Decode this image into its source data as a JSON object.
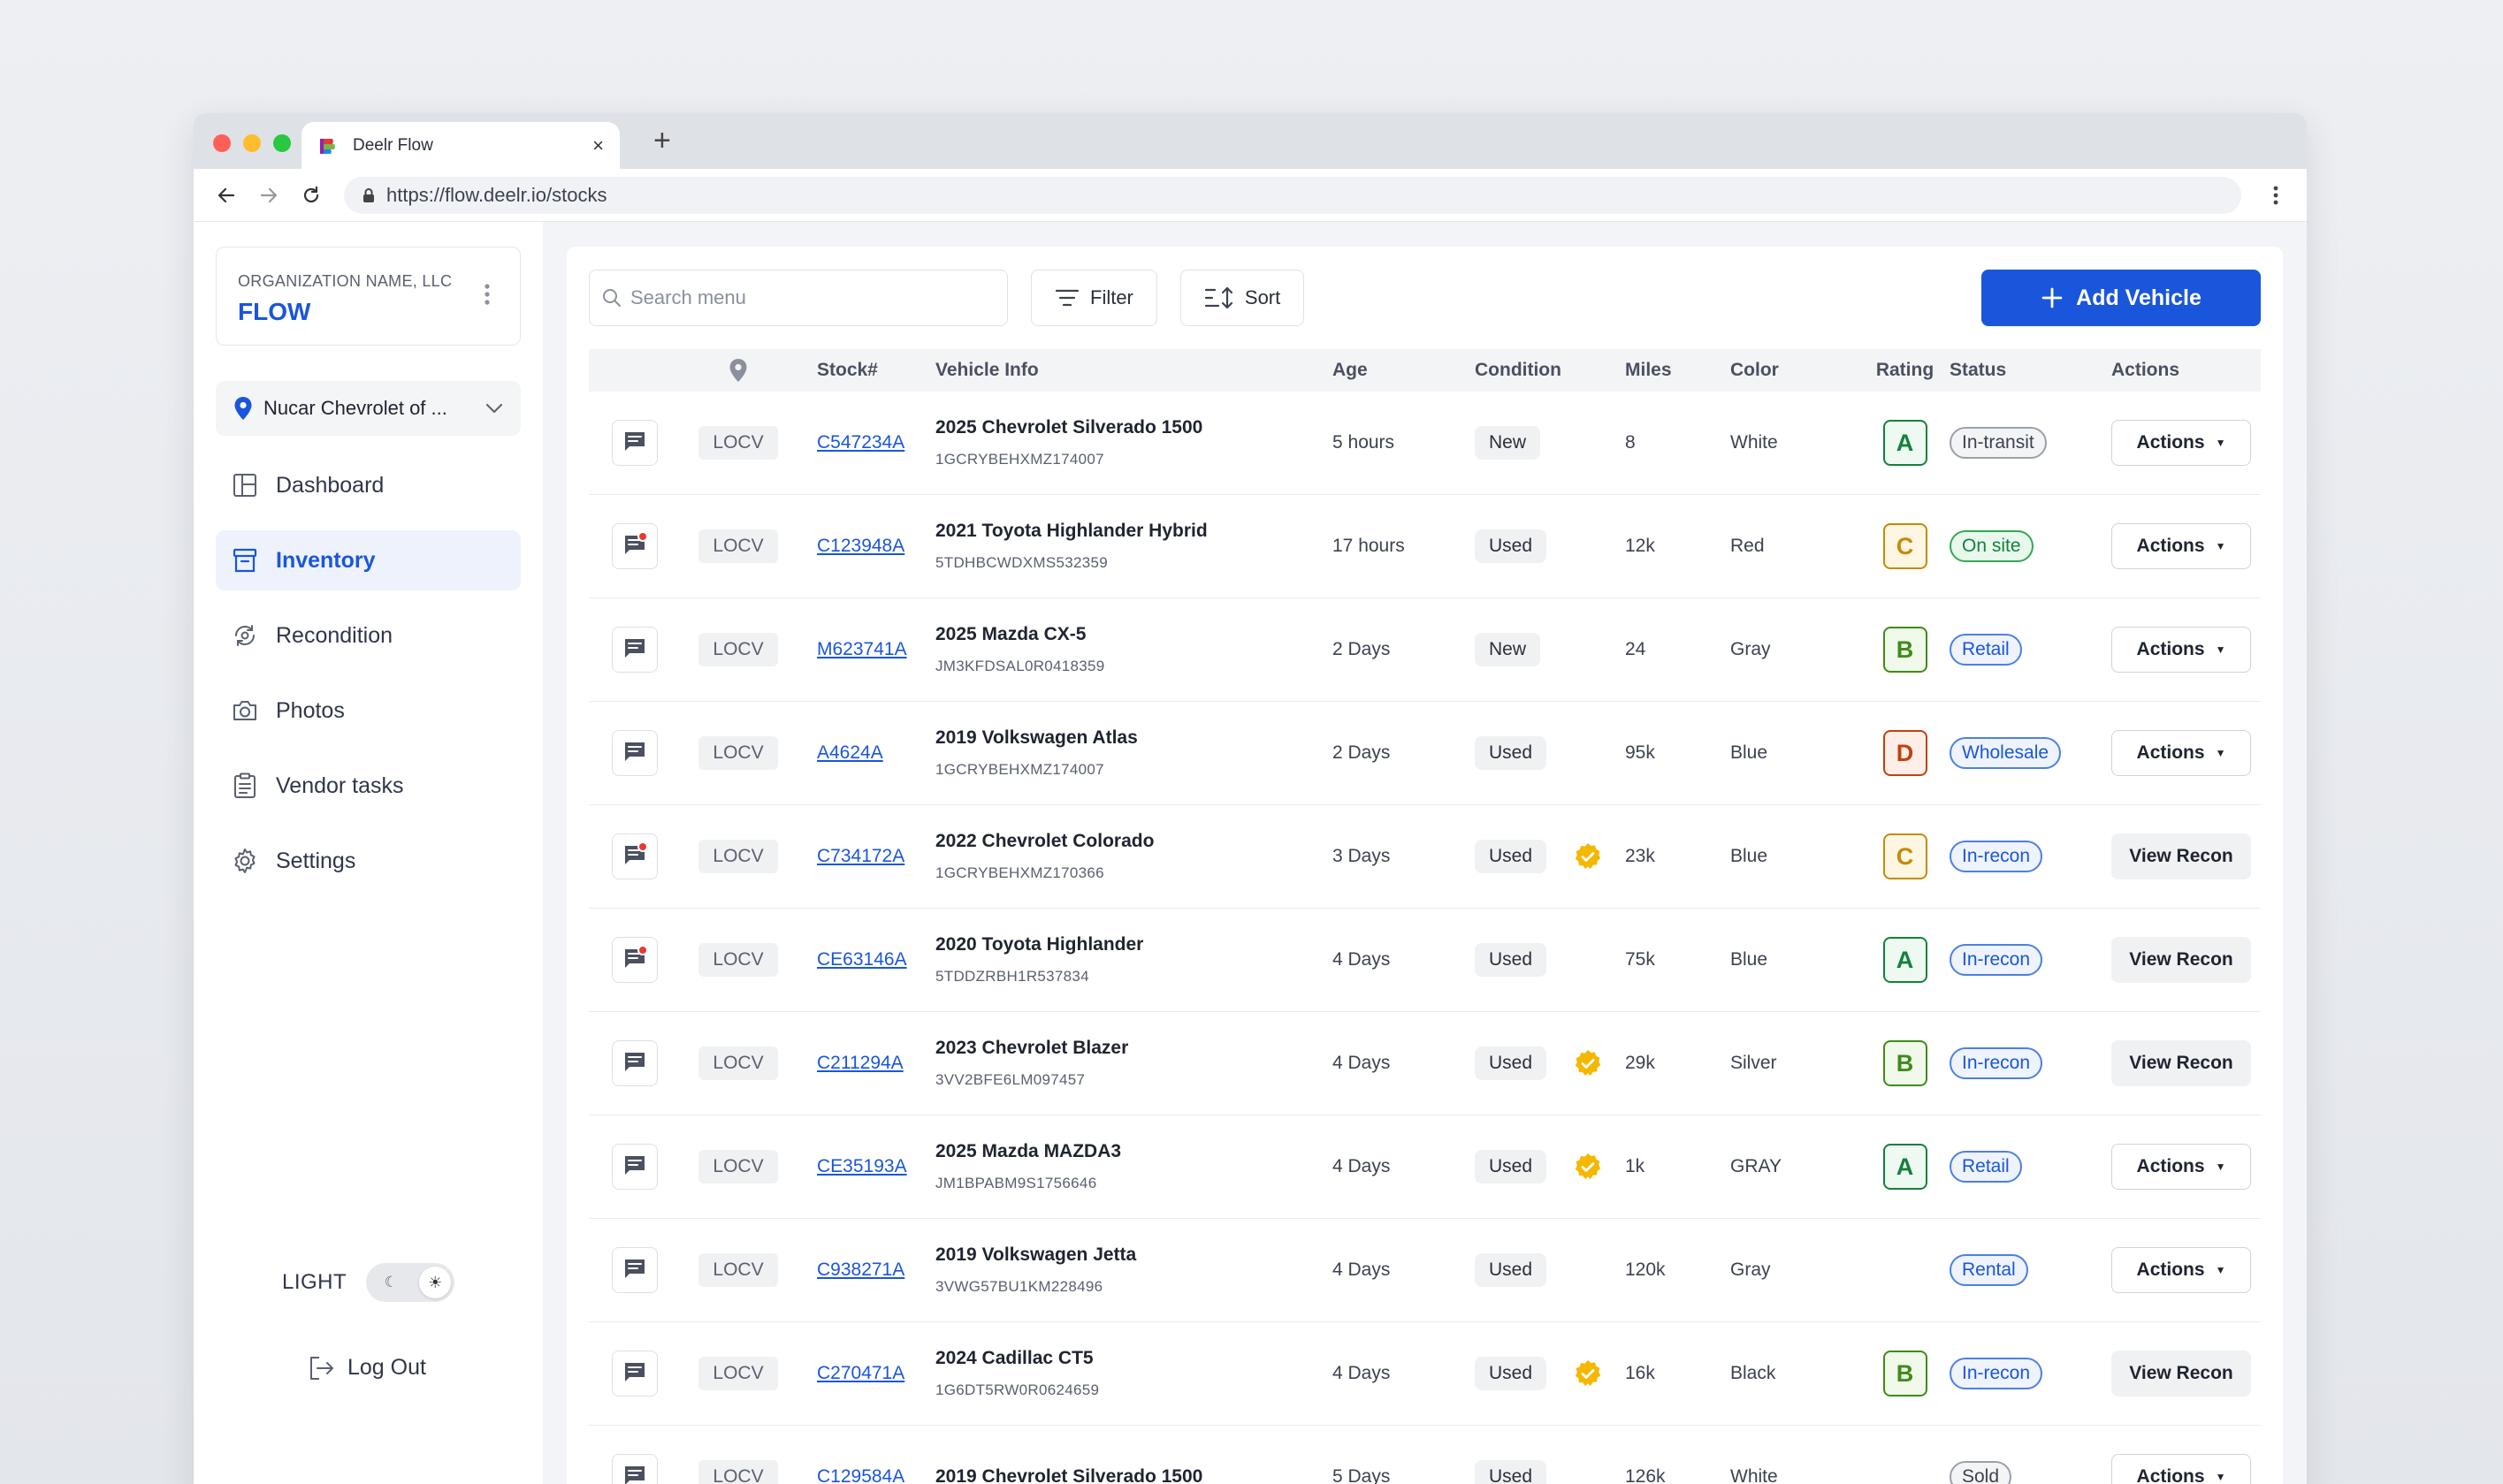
{
  "browser": {
    "tab_title": "Deelr Flow",
    "url": "https://flow.deelr.io/stocks"
  },
  "sidebar": {
    "org_name": "ORGANIZATION NAME, LLC",
    "app_name": "FLOW",
    "location": "Nucar Chevrolet of ...",
    "nav": [
      {
        "label": "Dashboard",
        "icon": "dashboard-icon"
      },
      {
        "label": "Inventory",
        "icon": "inventory-icon",
        "active": true
      },
      {
        "label": "Recondition",
        "icon": "recondition-icon"
      },
      {
        "label": "Photos",
        "icon": "camera-icon"
      },
      {
        "label": "Vendor tasks",
        "icon": "clipboard-icon"
      },
      {
        "label": "Settings",
        "icon": "gear-icon"
      }
    ],
    "theme_label": "LIGHT",
    "logout_label": "Log Out"
  },
  "toolbar": {
    "search_placeholder": "Search menu",
    "filter_label": "Filter",
    "sort_label": "Sort",
    "add_label": "Add Vehicle"
  },
  "table": {
    "headers": {
      "stock": "Stock#",
      "vehicle": "Vehicle Info",
      "age": "Age",
      "condition": "Condition",
      "miles": "Miles",
      "color": "Color",
      "rating": "Rating",
      "status": "Status",
      "actions": "Actions"
    },
    "rows": [
      {
        "loc": "LOCV",
        "stock": "C547234A",
        "name": "2025 Chevrolet Silverado 1500",
        "vin": "1GCRYBEHXMZ174007",
        "age": "5 hours",
        "condition": "New",
        "certified": false,
        "miles": "8",
        "color": "White",
        "rating": "A",
        "status": "In-transit",
        "status_style": "gray",
        "action": "Actions",
        "action_type": "menu",
        "unread": false
      },
      {
        "loc": "LOCV",
        "stock": "C123948A",
        "name": "2021 Toyota Highlander Hybrid",
        "vin": "5TDHBCWDXMS532359",
        "age": "17 hours",
        "condition": "Used",
        "certified": false,
        "miles": "12k",
        "color": "Red",
        "rating": "C",
        "status": "On site",
        "status_style": "green",
        "action": "Actions",
        "action_type": "menu",
        "unread": true
      },
      {
        "loc": "LOCV",
        "stock": "M623741A",
        "name": "2025 Mazda CX-5",
        "vin": "JM3KFDSAL0R0418359",
        "age": "2 Days",
        "condition": "New",
        "certified": false,
        "miles": "24",
        "color": "Gray",
        "rating": "B",
        "status": "Retail",
        "status_style": "blue",
        "action": "Actions",
        "action_type": "menu",
        "unread": false
      },
      {
        "loc": "LOCV",
        "stock": "A4624A",
        "name": "2019 Volkswagen Atlas",
        "vin": "1GCRYBEHXMZ174007",
        "age": "2 Days",
        "condition": "Used",
        "certified": false,
        "miles": "95k",
        "color": "Blue",
        "rating": "D",
        "status": "Wholesale",
        "status_style": "blue",
        "action": "Actions",
        "action_type": "menu",
        "unread": false
      },
      {
        "loc": "LOCV",
        "stock": "C734172A",
        "name": "2022 Chevrolet Colorado",
        "vin": "1GCRYBEHXMZ170366",
        "age": "3 Days",
        "condition": "Used",
        "certified": true,
        "miles": "23k",
        "color": "Blue",
        "rating": "C",
        "status": "In-recon",
        "status_style": "blue",
        "action": "View Recon",
        "action_type": "recon",
        "unread": true
      },
      {
        "loc": "LOCV",
        "stock": "CE63146A",
        "name": "2020 Toyota Highlander",
        "vin": "5TDDZRBH1R537834",
        "age": "4 Days",
        "condition": "Used",
        "certified": false,
        "miles": "75k",
        "color": "Blue",
        "rating": "A",
        "status": "In-recon",
        "status_style": "blue",
        "action": "View Recon",
        "action_type": "recon",
        "unread": true
      },
      {
        "loc": "LOCV",
        "stock": "C211294A",
        "name": "2023 Chevrolet Blazer",
        "vin": "3VV2BFE6LM097457",
        "age": "4 Days",
        "condition": "Used",
        "certified": true,
        "miles": "29k",
        "color": "Silver",
        "rating": "B",
        "status": "In-recon",
        "status_style": "blue",
        "action": "View Recon",
        "action_type": "recon",
        "unread": false
      },
      {
        "loc": "LOCV",
        "stock": "CE35193A",
        "name": "2025 Mazda MAZDA3",
        "vin": "JM1BPABM9S1756646",
        "age": "4 Days",
        "condition": "Used",
        "certified": true,
        "miles": "1k",
        "color": "GRAY",
        "rating": "A",
        "status": "Retail",
        "status_style": "blue",
        "action": "Actions",
        "action_type": "menu",
        "unread": false
      },
      {
        "loc": "LOCV",
        "stock": "C938271A",
        "name": "2019 Volkswagen Jetta",
        "vin": "3VWG57BU1KM228496",
        "age": "4 Days",
        "condition": "Used",
        "certified": false,
        "miles": "120k",
        "color": "Gray",
        "rating": "",
        "status": "Rental",
        "status_style": "blue",
        "action": "Actions",
        "action_type": "menu",
        "unread": false
      },
      {
        "loc": "LOCV",
        "stock": "C270471A",
        "name": "2024 Cadillac CT5",
        "vin": "1G6DT5RW0R0624659",
        "age": "4 Days",
        "condition": "Used",
        "certified": true,
        "miles": "16k",
        "color": "Black",
        "rating": "B",
        "status": "In-recon",
        "status_style": "blue",
        "action": "View Recon",
        "action_type": "recon",
        "unread": false
      },
      {
        "loc": "LOCV",
        "stock": "C129584A",
        "name": "2019 Chevrolet Silverado 1500",
        "vin": "",
        "age": "5 Days",
        "condition": "Used",
        "certified": false,
        "miles": "126k",
        "color": "White",
        "rating": "",
        "status": "Sold",
        "status_style": "gray",
        "action": "Actions",
        "action_type": "menu",
        "unread": false
      }
    ]
  },
  "colors": {
    "accent": "#1a56db",
    "rating_A": "#15803d",
    "rating_B": "#3f8b1a",
    "rating_C": "#c58a06",
    "rating_D": "#c2410c",
    "certified": "#f5b700"
  }
}
